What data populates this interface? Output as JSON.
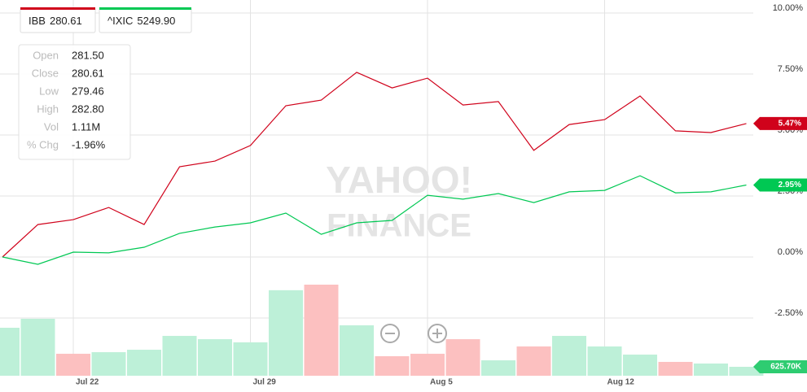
{
  "chart_data": {
    "type": "line",
    "categories": [
      null,
      null,
      "Jul 22",
      null,
      null,
      null,
      null,
      "Jul 29",
      null,
      null,
      null,
      null,
      "Aug 5",
      null,
      null,
      null,
      null,
      "Aug 12",
      null,
      null,
      null,
      null
    ],
    "series": [
      {
        "name": "IBB",
        "quote": "280.61",
        "color": "#d0021b",
        "values": [
          0,
          1.33,
          1.53,
          2.03,
          1.33,
          3.7,
          3.93,
          4.57,
          6.2,
          6.43,
          7.57,
          6.93,
          7.33,
          6.23,
          6.37,
          4.37,
          5.43,
          5.63,
          6.6,
          5.17,
          5.1,
          5.47
        ],
        "value_labels": [
          null,
          null,
          null,
          null,
          null,
          null,
          null,
          null,
          null,
          null,
          null,
          null,
          null,
          null,
          null,
          null,
          null,
          null,
          null,
          null,
          null,
          "5.47%"
        ]
      },
      {
        "name": "^IXIC",
        "quote": "5249.90",
        "color": "#00c853",
        "values": [
          0,
          -0.3,
          0.2,
          0.17,
          0.4,
          0.97,
          1.23,
          1.4,
          1.8,
          0.93,
          1.4,
          1.5,
          2.53,
          2.37,
          2.6,
          2.23,
          2.67,
          2.73,
          3.33,
          2.63,
          2.67,
          2.95
        ],
        "value_labels": [
          null,
          null,
          null,
          null,
          null,
          null,
          null,
          null,
          null,
          null,
          null,
          null,
          null,
          null,
          null,
          null,
          null,
          null,
          null,
          null,
          null,
          "2.95%"
        ]
      }
    ],
    "volume": {
      "values": [
        3360000,
        3990000,
        1540000,
        1650000,
        1820000,
        2790000,
        2560000,
        2340000,
        5990000,
        6380000,
        3530000,
        1370000,
        1540000,
        2560000,
        1080000,
        2050000,
        2790000,
        2050000,
        1480000,
        970000,
        855000,
        625700
      ],
      "colors": [
        "#bdf0d8",
        "#bdf0d8",
        "#fcc0c0",
        "#bdf0d8",
        "#bdf0d8",
        "#bdf0d8",
        "#bdf0d8",
        "#bdf0d8",
        "#bdf0d8",
        "#fcc0c0",
        "#bdf0d8",
        "#fcc0c0",
        "#fcc0c0",
        "#fcc0c0",
        "#bdf0d8",
        "#fcc0c0",
        "#bdf0d8",
        "#bdf0d8",
        "#bdf0d8",
        "#fcc0c0",
        "#bdf0d8",
        "#bdf0d8"
      ],
      "value_labels": [
        null,
        null,
        null,
        null,
        null,
        null,
        null,
        null,
        null,
        null,
        null,
        null,
        null,
        null,
        null,
        null,
        null,
        null,
        null,
        null,
        null,
        "625.70K"
      ]
    },
    "ylim": [
      -4.8,
      10.3
    ],
    "yticks": [
      {
        "value": 10,
        "label": "10.00%"
      },
      {
        "value": 7.5,
        "label": "7.50%"
      },
      {
        "value": 5,
        "label": "5.00%"
      },
      {
        "value": 2.5,
        "label": "2.50%"
      },
      {
        "value": 0,
        "label": "0.00%"
      },
      {
        "value": -2.5,
        "label": "-2.50%"
      }
    ],
    "grid": true
  },
  "tooltip": [
    {
      "label": "Open",
      "value": "281.50"
    },
    {
      "label": "Close",
      "value": "280.61"
    },
    {
      "label": "Low",
      "value": "279.46"
    },
    {
      "label": "High",
      "value": "282.80"
    },
    {
      "label": "Vol",
      "value": "1.11M"
    },
    {
      "label": "% Chg",
      "value": "-1.96%"
    }
  ],
  "watermark": [
    "YAHOO!",
    "FINANCE"
  ]
}
